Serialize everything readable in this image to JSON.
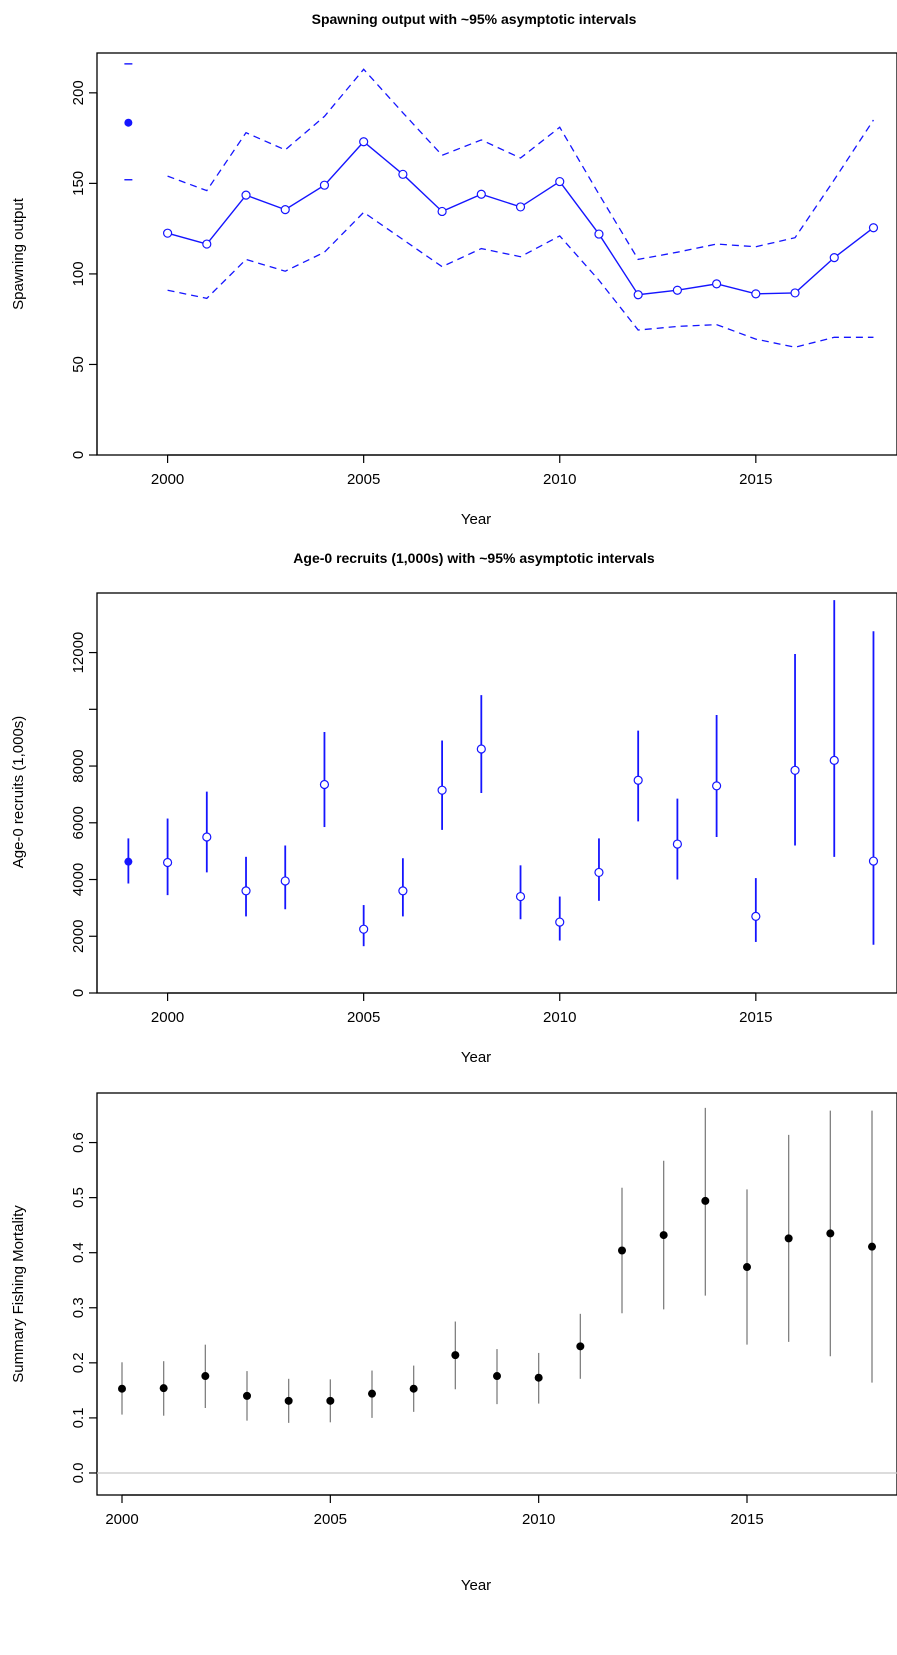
{
  "colors": {
    "blue": "#1515ff",
    "black": "#000000",
    "gray": "#808080",
    "zero_line": "#c8c8c8"
  },
  "chart_data": [
    {
      "type": "line",
      "title": "Spawning output with ~95% asymptotic intervals",
      "xlabel": "Year",
      "ylabel": "Spawning output",
      "xlim": [
        1998.2,
        2018.6
      ],
      "ylim": [
        0,
        222
      ],
      "x_ticks": [
        2000,
        2005,
        2010,
        2015
      ],
      "y_ticks": [
        0,
        50,
        100,
        150,
        200
      ],
      "virgin": {
        "x": 1999,
        "y": 183.5,
        "lower": 152,
        "upper": 216
      },
      "x": [
        2000,
        2001,
        2002,
        2003,
        2004,
        2005,
        2006,
        2007,
        2008,
        2009,
        2010,
        2011,
        2012,
        2013,
        2014,
        2015,
        2016,
        2017,
        2018
      ],
      "series": [
        {
          "values": [
            122.5,
            116.5,
            143.5,
            135.5,
            149,
            173,
            155,
            134.5,
            144,
            137,
            151,
            122,
            88.5,
            91,
            94.5,
            89,
            89.5,
            109,
            125.5
          ]
        },
        {
          "values": [
            154,
            146,
            178,
            168.5,
            187,
            213,
            189,
            165.5,
            174,
            164,
            181,
            144,
            108,
            112,
            116.5,
            115,
            120,
            152,
            185
          ]
        },
        {
          "values": [
            91,
            86.5,
            108,
            101.5,
            112,
            134,
            119,
            104,
            114,
            109.5,
            121,
            96.5,
            69,
            71,
            72,
            64,
            59.5,
            65,
            65
          ]
        }
      ]
    },
    {
      "type": "scatter",
      "title": "Age-0 recruits (1,000s) with ~95% asymptotic intervals",
      "xlabel": "Year",
      "ylabel": "Age-0 recruits (1,000s)",
      "xlim": [
        1998.2,
        2018.6
      ],
      "ylim": [
        0,
        14100
      ],
      "x_ticks": [
        2000,
        2005,
        2010,
        2015
      ],
      "y_ticks": [
        0,
        2000,
        4000,
        6000,
        8000,
        10000,
        12000
      ],
      "y_tick_labels": [
        "0",
        "2000",
        "4000",
        "6000",
        "8000",
        "",
        "12000"
      ],
      "virgin": {
        "x": 1999,
        "y": 4630,
        "lower": 3860,
        "upper": 5450
      },
      "x": [
        2000,
        2001,
        2002,
        2003,
        2004,
        2005,
        2006,
        2007,
        2008,
        2009,
        2010,
        2011,
        2012,
        2013,
        2014,
        2015,
        2016,
        2017,
        2018
      ],
      "values": [
        4600,
        5500,
        3600,
        3950,
        7350,
        2250,
        3600,
        7150,
        8600,
        3400,
        2500,
        4250,
        7500,
        5250,
        7300,
        2700,
        7850,
        8200,
        4650
      ],
      "lower": [
        3450,
        4250,
        2700,
        2950,
        5850,
        1650,
        2700,
        5750,
        7050,
        2600,
        1850,
        3250,
        6050,
        4000,
        5500,
        1800,
        5200,
        4800,
        1700
      ],
      "upper": [
        6150,
        7100,
        4800,
        5200,
        9200,
        3100,
        4750,
        8900,
        10500,
        4500,
        3400,
        5450,
        9250,
        6850,
        9800,
        4050,
        11950,
        13850,
        12750
      ]
    },
    {
      "type": "scatter",
      "title": "",
      "xlabel": "Year",
      "ylabel": "Summary Fishing Mortality",
      "xlim": [
        1999.4,
        2018.6
      ],
      "ylim": [
        -0.04,
        0.69
      ],
      "x_ticks": [
        2000,
        2005,
        2010,
        2015
      ],
      "y_ticks": [
        0.0,
        0.1,
        0.2,
        0.3,
        0.4,
        0.5,
        0.6
      ],
      "y_tick_labels": [
        "0.0",
        "0.1",
        "0.2",
        "0.3",
        "0.4",
        "0.5",
        "0.6"
      ],
      "x": [
        2000,
        2001,
        2002,
        2003,
        2004,
        2005,
        2006,
        2007,
        2008,
        2009,
        2010,
        2011,
        2012,
        2013,
        2014,
        2015,
        2016,
        2017,
        2018
      ],
      "values": [
        0.153,
        0.154,
        0.176,
        0.14,
        0.131,
        0.131,
        0.144,
        0.153,
        0.214,
        0.176,
        0.173,
        0.23,
        0.404,
        0.432,
        0.494,
        0.374,
        0.426,
        0.435,
        0.411
      ],
      "lower": [
        0.106,
        0.104,
        0.118,
        0.095,
        0.091,
        0.092,
        0.1,
        0.111,
        0.152,
        0.125,
        0.126,
        0.171,
        0.29,
        0.297,
        0.322,
        0.233,
        0.238,
        0.212,
        0.164
      ],
      "upper": [
        0.201,
        0.203,
        0.233,
        0.185,
        0.171,
        0.17,
        0.186,
        0.195,
        0.275,
        0.225,
        0.218,
        0.289,
        0.518,
        0.567,
        0.663,
        0.515,
        0.614,
        0.658,
        0.658
      ]
    }
  ]
}
